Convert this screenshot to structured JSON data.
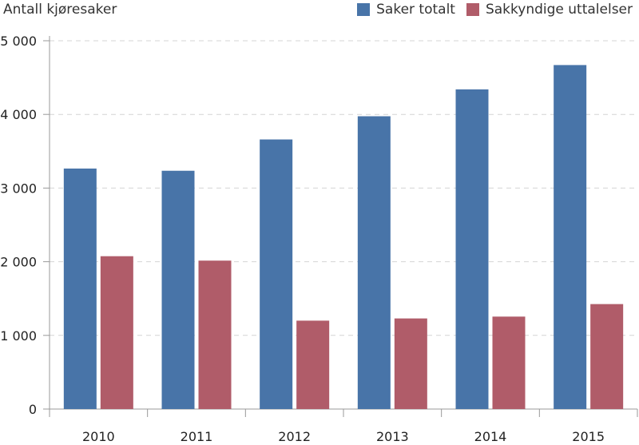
{
  "chart_data": {
    "type": "bar",
    "title": "",
    "ylabel": "Antall kjøresaker",
    "xlabel": "",
    "categories": [
      "2010",
      "2011",
      "2012",
      "2013",
      "2014",
      "2015"
    ],
    "series": [
      {
        "name": "Saker totalt",
        "color": "#4874a8",
        "values": [
          3265,
          3235,
          3660,
          3975,
          4340,
          4670
        ]
      },
      {
        "name": "Sakkyndige uttalelser",
        "color": "#b05c69",
        "values": [
          2075,
          2015,
          1200,
          1230,
          1255,
          1425
        ]
      }
    ],
    "ylim": [
      0,
      5000
    ],
    "yticks": [
      0,
      1000,
      2000,
      3000,
      4000,
      5000
    ],
    "ytick_labels": [
      "0",
      "1 000",
      "2 000",
      "3 000",
      "4 000",
      "5 000"
    ],
    "grid": true,
    "legend_position": "top-right"
  }
}
